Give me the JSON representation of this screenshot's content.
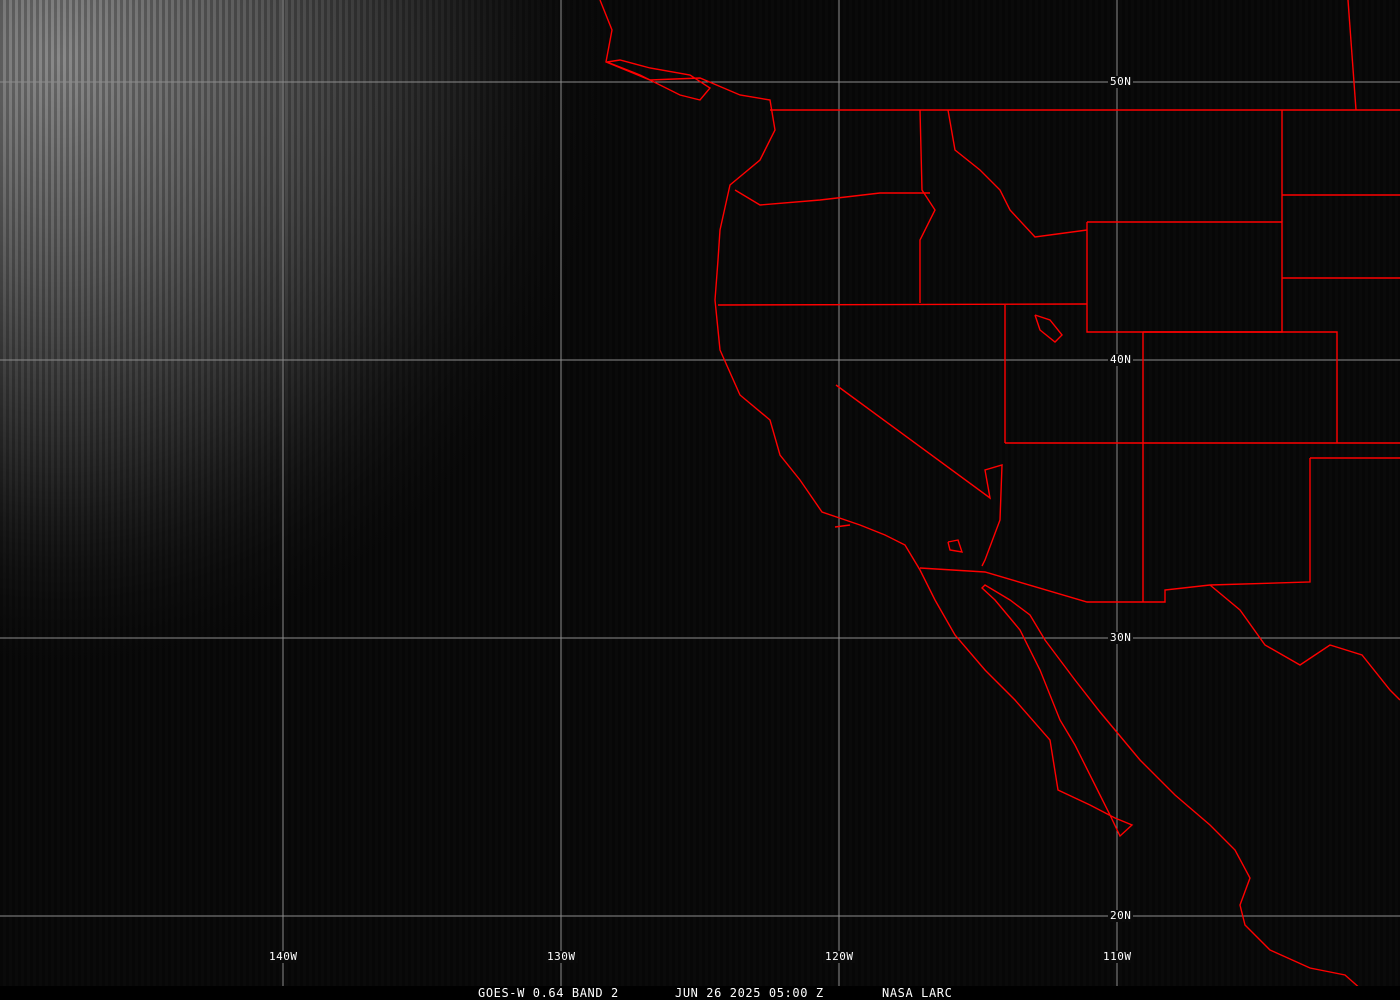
{
  "caption": {
    "product": "GOES-W 0.64 BAND 2",
    "datetime": "JUN 26 2025 05:00 Z",
    "source": "NASA LARC"
  },
  "grid": {
    "longitudes": [
      {
        "label": "140W",
        "value": -140
      },
      {
        "label": "130W",
        "value": -130
      },
      {
        "label": "120W",
        "value": -120
      },
      {
        "label": "110W",
        "value": -110
      }
    ],
    "latitudes": [
      {
        "label": "50N",
        "value": 50
      },
      {
        "label": "40N",
        "value": 40
      },
      {
        "label": "30N",
        "value": 30
      },
      {
        "label": "20N",
        "value": 20
      }
    ]
  },
  "colors": {
    "boundaries": "#ff0000",
    "grid": "#8c8c8c",
    "background": "#0a0a0a"
  }
}
